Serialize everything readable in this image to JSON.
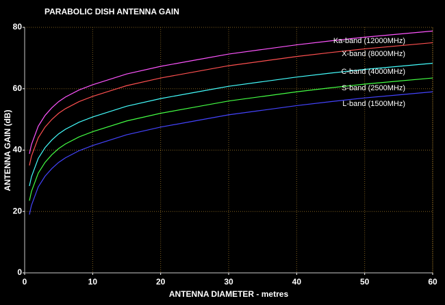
{
  "chart_data": {
    "type": "line",
    "title": "PARABOLIC DISH ANTENNA GAIN",
    "x_label": "ANTENNA DIAMETER - metres",
    "y_label": "ANTENNA GAIN (dB)",
    "x": [
      0.7,
      1,
      2,
      3,
      4,
      5,
      6,
      8,
      10,
      15,
      20,
      25,
      30,
      35,
      40,
      45,
      50,
      55,
      60
    ],
    "series": [
      {
        "name": "Ka-band (12000MHz)",
        "color": "#ff55ff",
        "values": [
          38.8,
          41.8,
          47.8,
          51.3,
          53.8,
          55.8,
          57.3,
          59.6,
          61.3,
          64.8,
          67.3,
          69.3,
          71.3,
          72.8,
          74.3,
          75.6,
          76.8,
          77.8,
          78.8
        ]
      },
      {
        "name": "X-band (8000MHz)",
        "color": "#ff5050",
        "values": [
          35,
          38,
          44,
          47.5,
          50,
          52,
          53.5,
          55.8,
          57.5,
          61,
          63.5,
          65.5,
          67.5,
          69,
          70.5,
          71.8,
          73,
          74,
          75
        ]
      },
      {
        "name": "C-band (4000MHz)",
        "color": "#44ffff",
        "values": [
          28.3,
          31.3,
          37.3,
          40.8,
          43.3,
          45.3,
          46.8,
          49.1,
          50.8,
          54.3,
          56.8,
          58.8,
          60.8,
          62.3,
          63.8,
          65.1,
          66.3,
          67.3,
          68.3
        ]
      },
      {
        "name": "S-band (2500MHz)",
        "color": "#44ff44",
        "values": [
          23.5,
          26.5,
          32.5,
          36,
          38.5,
          40.5,
          42,
          44.3,
          46,
          49.5,
          52,
          54,
          56,
          57.5,
          59,
          60.3,
          61.5,
          62.5,
          63.5
        ]
      },
      {
        "name": "L-band (1500MHz)",
        "color": "#4444ff",
        "values": [
          19,
          22,
          28,
          31.5,
          34,
          36,
          37.5,
          39.8,
          41.5,
          45,
          47.5,
          49.5,
          51.5,
          53,
          54.5,
          55.8,
          57,
          58,
          59
        ]
      }
    ],
    "xlim": [
      0,
      60
    ],
    "ylim": [
      0,
      80
    ],
    "xticks": [
      0,
      10,
      20,
      30,
      40,
      50,
      60
    ],
    "yticks": [
      0,
      20,
      40,
      60,
      80
    ],
    "grid": true
  }
}
